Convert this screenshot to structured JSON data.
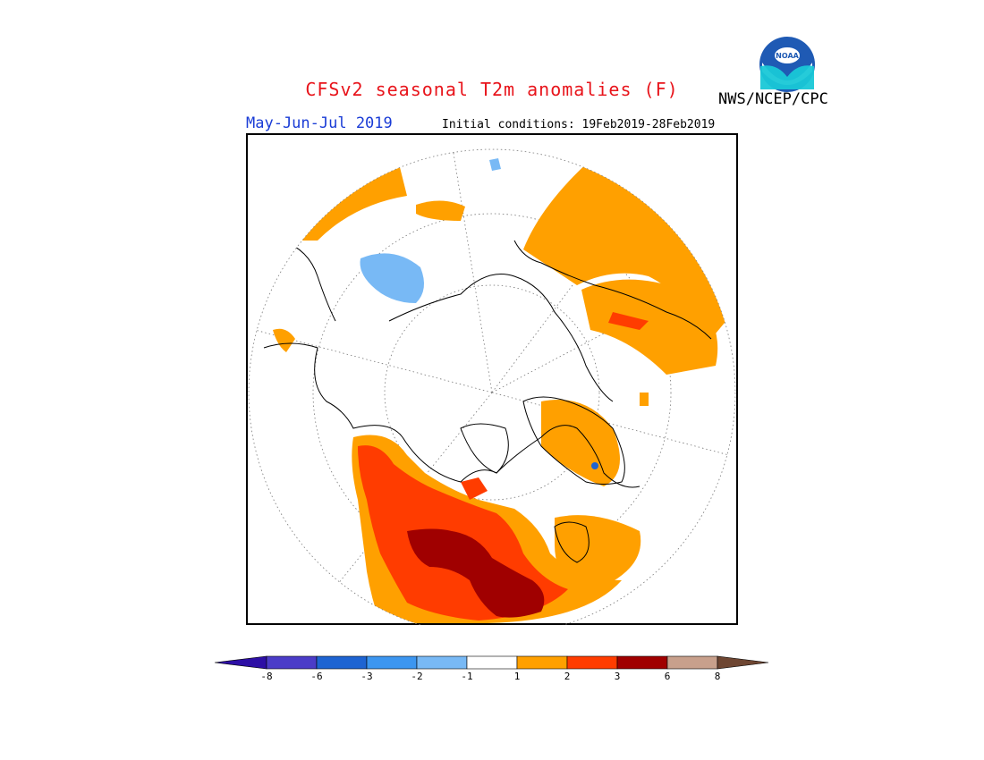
{
  "title": "CFSv2 seasonal T2m anomalies (F)",
  "period": "May-Jun-Jul 2019",
  "initial_conditions": "Initial conditions: 19Feb2019-28Feb2019",
  "agency": "NWS/NCEP/CPC",
  "logo_text": "NOAA",
  "colorbar": {
    "labels": [
      "-8",
      "-6",
      "-3",
      "-2",
      "-1",
      "1",
      "2",
      "3",
      "6",
      "8"
    ],
    "colors": [
      "#2d0fa5",
      "#4b3cc8",
      "#1e64d2",
      "#3c96f0",
      "#78b9f5",
      "#ffffff",
      "#ffa000",
      "#ff3c00",
      "#a00000",
      "#c8a08c",
      "#6e4632"
    ]
  },
  "colors": {
    "land_outline": "#000000",
    "anomaly_1_2": "#ffa000",
    "anomaly_2_3": "#ff3c00",
    "anomaly_3_6": "#a00000",
    "anomaly_neg_1_2": "#78b9f5",
    "anomaly_neg_2_3": "#3c96f0"
  }
}
